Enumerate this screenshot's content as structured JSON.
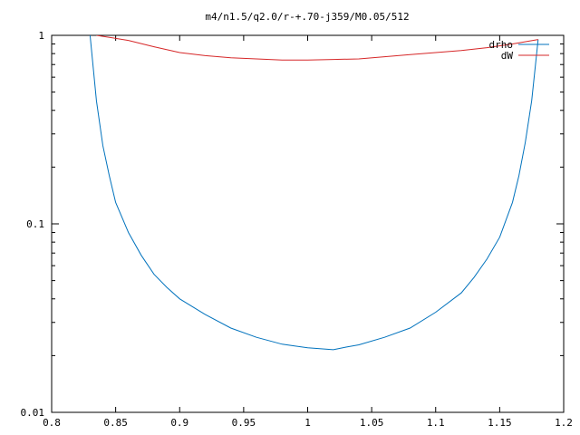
{
  "chart_data": {
    "type": "line",
    "title": "m4/n1.5/q2.0/r-+.70-j359/M0.05/512",
    "xlabel": "",
    "ylabel": "",
    "xlim": [
      0.8,
      1.2
    ],
    "ylim": [
      0.01,
      1
    ],
    "yscale": "log",
    "grid": false,
    "legend_position": "top-right",
    "x_ticks": [
      0.8,
      0.85,
      0.9,
      0.95,
      1,
      1.05,
      1.1,
      1.15,
      1.2
    ],
    "x_tick_labels": [
      "0.8",
      "0.85",
      "0.9",
      "0.95",
      "1",
      "1.05",
      "1.1",
      "1.15",
      "1.2"
    ],
    "y_ticks": [
      0.01,
      0.1,
      1
    ],
    "y_tick_labels": [
      "0.01",
      "0.1",
      "1"
    ],
    "series": [
      {
        "name": "drho",
        "color": "#0072bd",
        "x": [
          0.83,
          0.835,
          0.84,
          0.845,
          0.85,
          0.86,
          0.87,
          0.88,
          0.89,
          0.9,
          0.92,
          0.94,
          0.96,
          0.98,
          1.0,
          1.02,
          1.03,
          1.04,
          1.06,
          1.08,
          1.1,
          1.12,
          1.13,
          1.14,
          1.15,
          1.16,
          1.165,
          1.17,
          1.175,
          1.178,
          1.18
        ],
        "y": [
          1.0,
          0.45,
          0.26,
          0.18,
          0.13,
          0.09,
          0.068,
          0.054,
          0.046,
          0.04,
          0.033,
          0.028,
          0.025,
          0.023,
          0.022,
          0.0215,
          0.0222,
          0.0228,
          0.025,
          0.028,
          0.034,
          0.043,
          0.052,
          0.065,
          0.085,
          0.13,
          0.18,
          0.27,
          0.45,
          0.7,
          0.95
        ]
      },
      {
        "name": "dW",
        "color": "#d62728",
        "x": [
          0.835,
          0.86,
          0.88,
          0.9,
          0.92,
          0.94,
          0.96,
          0.98,
          1.0,
          1.02,
          1.04,
          1.06,
          1.08,
          1.1,
          1.12,
          1.14,
          1.16,
          1.18
        ],
        "y": [
          1.0,
          0.94,
          0.87,
          0.81,
          0.78,
          0.76,
          0.75,
          0.74,
          0.74,
          0.745,
          0.75,
          0.77,
          0.79,
          0.81,
          0.83,
          0.86,
          0.9,
          0.95
        ]
      }
    ]
  }
}
